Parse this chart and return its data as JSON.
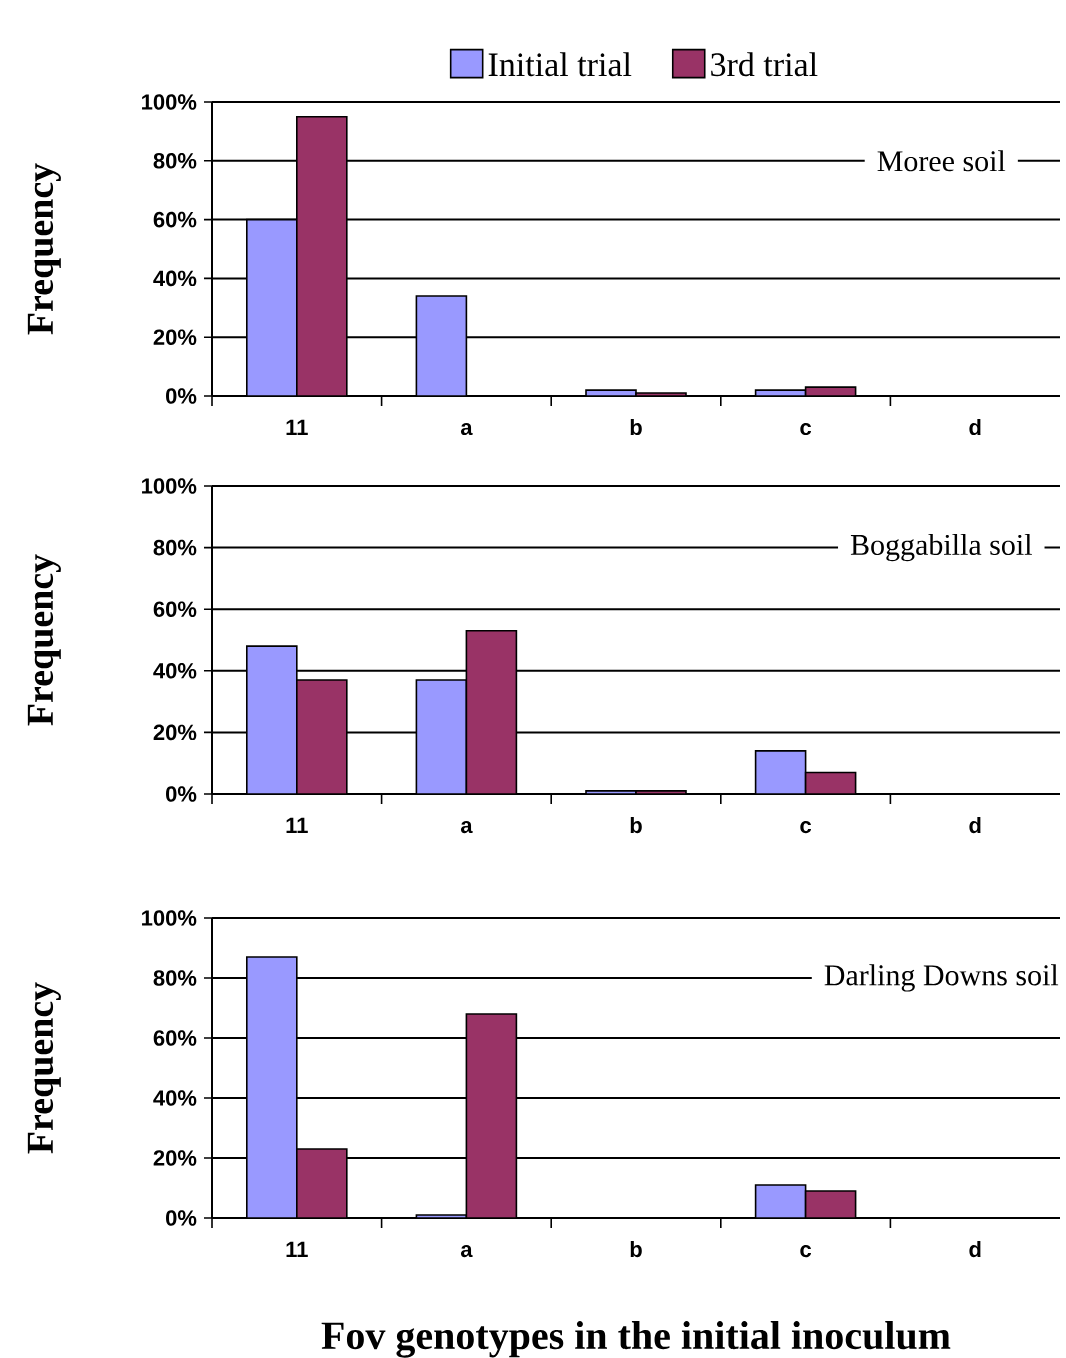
{
  "chart_data": [
    {
      "type": "bar",
      "categories": [
        "11",
        "a",
        "b",
        "c",
        "d"
      ],
      "ylabel": "Frequency",
      "annotations": [
        "Moree soil"
      ],
      "ylim": [
        0,
        100
      ],
      "yticks": [
        {
          "value": 0,
          "label": "0%"
        },
        {
          "value": 20,
          "label": "20%"
        },
        {
          "value": 40,
          "label": "40%"
        },
        {
          "value": 60,
          "label": "60%"
        },
        {
          "value": 80,
          "label": "80%"
        },
        {
          "value": 100,
          "label": "100%"
        }
      ],
      "grid": "y",
      "legend": "top",
      "series": [
        {
          "name": "Initial trial",
          "color": "#9999ff",
          "values": [
            60,
            34,
            2,
            2,
            0
          ]
        },
        {
          "name": "3rd trial",
          "color": "#993366",
          "values": [
            95,
            0,
            1,
            3,
            0
          ]
        }
      ]
    },
    {
      "type": "bar",
      "categories": [
        "11",
        "a",
        "b",
        "c",
        "d"
      ],
      "ylabel": "Frequency",
      "annotations": [
        "Boggabilla soil"
      ],
      "ylim": [
        0,
        100
      ],
      "yticks": [
        {
          "value": 0,
          "label": "0%"
        },
        {
          "value": 20,
          "label": "20%"
        },
        {
          "value": 40,
          "label": "40%"
        },
        {
          "value": 60,
          "label": "60%"
        },
        {
          "value": 80,
          "label": "80%"
        },
        {
          "value": 100,
          "label": "100%"
        }
      ],
      "grid": "y",
      "series": [
        {
          "color": "#9999ff",
          "values": [
            48,
            37,
            1,
            14,
            0
          ]
        },
        {
          "color": "#993366",
          "values": [
            37,
            53,
            1,
            7,
            0
          ]
        }
      ]
    },
    {
      "type": "bar",
      "categories": [
        "11",
        "a",
        "b",
        "c",
        "d"
      ],
      "ylabel": "Frequency",
      "xlabel": "Fov genotypes in the initial inoculum",
      "annotations": [
        "Darling Downs soil"
      ],
      "ylim": [
        0,
        100
      ],
      "yticks": [
        {
          "value": 0,
          "label": "0%"
        },
        {
          "value": 20,
          "label": "20%"
        },
        {
          "value": 40,
          "label": "40%"
        },
        {
          "value": 60,
          "label": "60%"
        },
        {
          "value": 80,
          "label": "80%"
        },
        {
          "value": 100,
          "label": "100%"
        }
      ],
      "grid": "y",
      "series": [
        {
          "color": "#9999ff",
          "values": [
            87,
            1,
            0,
            11,
            0
          ]
        },
        {
          "color": "#993366",
          "values": [
            23,
            68,
            0,
            9,
            0
          ]
        }
      ]
    }
  ]
}
